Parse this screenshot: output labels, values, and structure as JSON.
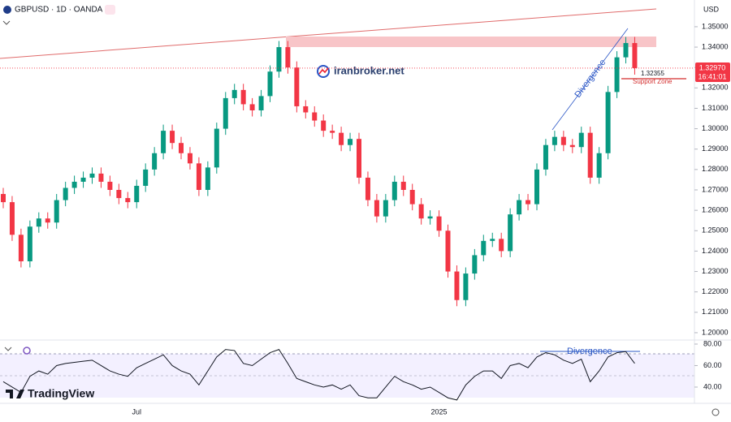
{
  "chart_data": {
    "type": "candlestick",
    "title": "GBPUSD · 1D · OANDA",
    "currency": "USD",
    "categories": [
      null,
      null,
      null,
      null,
      null,
      null,
      null,
      null,
      null,
      null,
      null,
      null,
      null,
      null,
      null,
      "Jul",
      null,
      null,
      null,
      null,
      null,
      null,
      null,
      null,
      null,
      null,
      null,
      null,
      null,
      null,
      null,
      null,
      null,
      null,
      null,
      null,
      null,
      null,
      null,
      null,
      null,
      null,
      null,
      null,
      null,
      null,
      null,
      null,
      null,
      "2025",
      null,
      null,
      null,
      null,
      null,
      null,
      null,
      null,
      null,
      null,
      null,
      null,
      null,
      null,
      null,
      null,
      null,
      null,
      null,
      null,
      null,
      null
    ],
    "open": [
      1.268,
      1.264,
      1.248,
      1.235,
      1.252,
      1.256,
      1.254,
      1.265,
      1.271,
      1.274,
      1.276,
      1.278,
      1.274,
      1.27,
      1.266,
      1.264,
      1.272,
      1.28,
      1.288,
      1.299,
      1.293,
      1.288,
      1.283,
      1.27,
      1.281,
      1.3,
      1.315,
      1.319,
      1.312,
      1.309,
      1.316,
      1.328,
      1.34,
      1.33,
      1.311,
      1.308,
      1.304,
      1.299,
      1.298,
      1.292,
      1.295,
      1.276,
      1.265,
      1.257,
      1.265,
      1.274,
      1.27,
      1.263,
      1.256,
      1.257,
      1.25,
      1.23,
      1.216,
      1.229,
      1.238,
      1.245,
      1.246,
      1.24,
      1.258,
      1.265,
      1.263,
      1.28,
      1.292,
      1.296,
      1.292,
      1.291,
      1.298,
      1.276,
      1.288,
      1.318,
      1.335,
      1.342
    ],
    "high": [
      1.271,
      1.267,
      1.251,
      1.255,
      1.259,
      1.259,
      1.268,
      1.274,
      1.277,
      1.279,
      1.281,
      1.281,
      1.277,
      1.273,
      1.269,
      1.275,
      1.283,
      1.291,
      1.302,
      1.302,
      1.296,
      1.291,
      1.286,
      1.284,
      1.303,
      1.318,
      1.322,
      1.322,
      1.315,
      1.319,
      1.331,
      1.343,
      1.343,
      1.333,
      1.314,
      1.311,
      1.307,
      1.302,
      1.301,
      1.298,
      1.298,
      1.279,
      1.268,
      1.268,
      1.277,
      1.277,
      1.273,
      1.266,
      1.26,
      1.26,
      1.253,
      1.233,
      1.232,
      1.241,
      1.248,
      1.249,
      1.249,
      1.261,
      1.268,
      1.268,
      1.283,
      1.295,
      1.299,
      1.299,
      1.295,
      1.301,
      1.301,
      1.291,
      1.321,
      1.338,
      1.345,
      1.345
    ],
    "low": [
      1.261,
      1.245,
      1.232,
      1.232,
      1.249,
      1.251,
      1.251,
      1.262,
      1.268,
      1.271,
      1.273,
      1.271,
      1.267,
      1.263,
      1.261,
      1.261,
      1.269,
      1.277,
      1.285,
      1.29,
      1.285,
      1.28,
      1.267,
      1.267,
      1.278,
      1.297,
      1.312,
      1.309,
      1.306,
      1.306,
      1.313,
      1.325,
      1.327,
      1.308,
      1.305,
      1.301,
      1.296,
      1.295,
      1.289,
      1.289,
      1.273,
      1.262,
      1.254,
      1.254,
      1.262,
      1.267,
      1.26,
      1.253,
      1.253,
      1.247,
      1.227,
      1.213,
      1.213,
      1.226,
      1.235,
      1.242,
      1.237,
      1.237,
      1.255,
      1.26,
      1.26,
      1.277,
      1.289,
      1.289,
      1.288,
      1.288,
      1.273,
      1.273,
      1.285,
      1.315,
      1.332,
      1.3265
    ],
    "close": [
      1.264,
      1.248,
      1.235,
      1.252,
      1.256,
      1.254,
      1.265,
      1.271,
      1.274,
      1.276,
      1.278,
      1.274,
      1.27,
      1.266,
      1.264,
      1.272,
      1.28,
      1.288,
      1.299,
      1.293,
      1.288,
      1.283,
      1.27,
      1.281,
      1.3,
      1.315,
      1.319,
      1.312,
      1.309,
      1.316,
      1.328,
      1.34,
      1.33,
      1.311,
      1.308,
      1.304,
      1.299,
      1.298,
      1.292,
      1.295,
      1.276,
      1.265,
      1.257,
      1.265,
      1.274,
      1.27,
      1.263,
      1.256,
      1.257,
      1.25,
      1.23,
      1.216,
      1.229,
      1.238,
      1.245,
      1.246,
      1.24,
      1.258,
      1.265,
      1.263,
      1.28,
      1.292,
      1.296,
      1.292,
      1.291,
      1.298,
      1.276,
      1.288,
      1.318,
      1.335,
      1.342,
      1.3297
    ],
    "up_color": "#089981",
    "down_color": "#f23645",
    "ylim": [
      1.1968,
      1.3631
    ],
    "yticks": [
      {
        "value": 1.2,
        "label": "1.20000"
      },
      {
        "value": 1.21,
        "label": "1.21000"
      },
      {
        "value": 1.22,
        "label": "1.22000"
      },
      {
        "value": 1.23,
        "label": "1.23000"
      },
      {
        "value": 1.24,
        "label": "1.24000"
      },
      {
        "value": 1.25,
        "label": "1.25000"
      },
      {
        "value": 1.26,
        "label": "1.26000"
      },
      {
        "value": 1.27,
        "label": "1.27000"
      },
      {
        "value": 1.28,
        "label": "1.28000"
      },
      {
        "value": 1.29,
        "label": "1.29000"
      },
      {
        "value": 1.3,
        "label": "1.30000"
      },
      {
        "value": 1.31,
        "label": "1.31000"
      },
      {
        "value": 1.32,
        "label": "1.32000"
      },
      {
        "value": 1.33,
        "label": "1.33000"
      },
      {
        "value": 1.34,
        "label": "1.34000"
      },
      {
        "value": 1.35,
        "label": "1.35000"
      }
    ],
    "last_price": {
      "value": 1.3297,
      "label": "1.32970"
    },
    "countdown": "16:41:01",
    "annotations": {
      "support_price": "1.32355",
      "support_label": "Support Zone",
      "divergence": "Divergence",
      "watermark": "iranbroker.net",
      "brand": "TradingView"
    },
    "rsi": {
      "type": "line",
      "color": "#131722",
      "values": [
        45,
        40,
        35,
        50,
        55,
        52,
        60,
        62,
        63,
        64,
        65,
        60,
        55,
        52,
        50,
        58,
        62,
        66,
        70,
        60,
        55,
        52,
        42,
        55,
        68,
        75,
        74,
        62,
        60,
        66,
        72,
        75,
        62,
        48,
        45,
        42,
        40,
        42,
        38,
        42,
        32,
        30,
        30,
        40,
        50,
        45,
        42,
        38,
        40,
        35,
        30,
        28,
        42,
        50,
        55,
        55,
        48,
        60,
        62,
        58,
        68,
        72,
        70,
        65,
        62,
        66,
        45,
        55,
        68,
        72,
        73,
        62
      ],
      "ylim": [
        26.4,
        83
      ],
      "yticks": [
        {
          "value": 40,
          "label": "40.00"
        },
        {
          "value": 60,
          "label": "60.00"
        },
        {
          "value": 80,
          "label": "80.00"
        }
      ],
      "divergence": "Divergence"
    }
  }
}
